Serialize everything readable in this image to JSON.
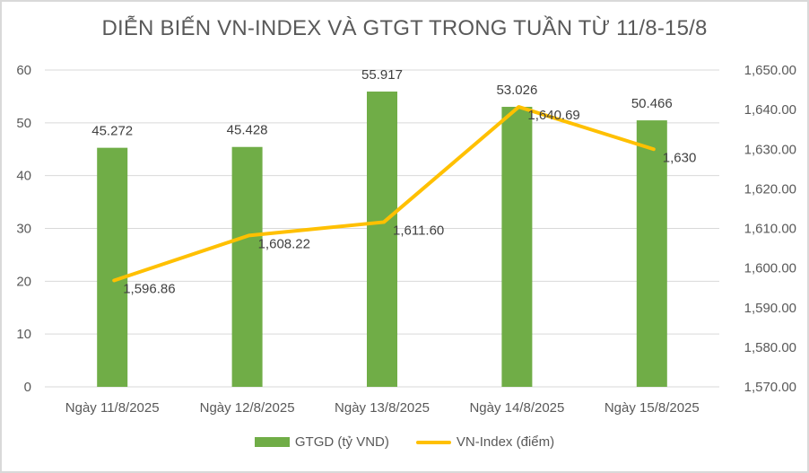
{
  "chart_data": {
    "type": "bar+line",
    "title": "DIỄN BIẾN VN-INDEX VÀ GTGT TRONG TUẦN TỪ 11/8-15/8",
    "categories": [
      "Ngày 11/8/2025",
      "Ngày 12/8/2025",
      "Ngày 13/8/2025",
      "Ngày 14/8/2025",
      "Ngày 15/8/2025"
    ],
    "series": [
      {
        "name": "GTGD (tỷ VND)",
        "type": "bar",
        "axis": "left",
        "color": "#70ad47",
        "values": [
          45.272,
          45.428,
          55.917,
          53.026,
          50.466
        ],
        "labels": [
          "45.272",
          "45.428",
          "55.917",
          "53.026",
          "50.466"
        ]
      },
      {
        "name": "VN-Index (điểm)",
        "type": "line",
        "axis": "right",
        "color": "#ffc000",
        "values": [
          1596.86,
          1608.22,
          1611.6,
          1640.69,
          1630
        ],
        "labels": [
          "1,596.86",
          "1,608.22",
          "1,611.60",
          "1,640.69",
          "1,630"
        ]
      }
    ],
    "left_axis": {
      "ylim": [
        0,
        60
      ],
      "ticks": [
        0,
        10,
        20,
        30,
        40,
        50,
        60
      ],
      "tick_labels": [
        "0",
        "10",
        "20",
        "30",
        "40",
        "50",
        "60"
      ]
    },
    "right_axis": {
      "ylim": [
        1570,
        1650
      ],
      "ticks": [
        1570,
        1580,
        1590,
        1600,
        1610,
        1620,
        1630,
        1640,
        1650
      ],
      "tick_labels": [
        "1,570.00",
        "1,580.00",
        "1,590.00",
        "1,600.00",
        "1,610.00",
        "1,620.00",
        "1,630.00",
        "1,640.00",
        "1,650.00"
      ]
    },
    "grid": true,
    "legend_position": "bottom"
  },
  "legend": {
    "bar_label": "GTGD (tỷ VND)",
    "line_label": "VN-Index (điểm)"
  }
}
